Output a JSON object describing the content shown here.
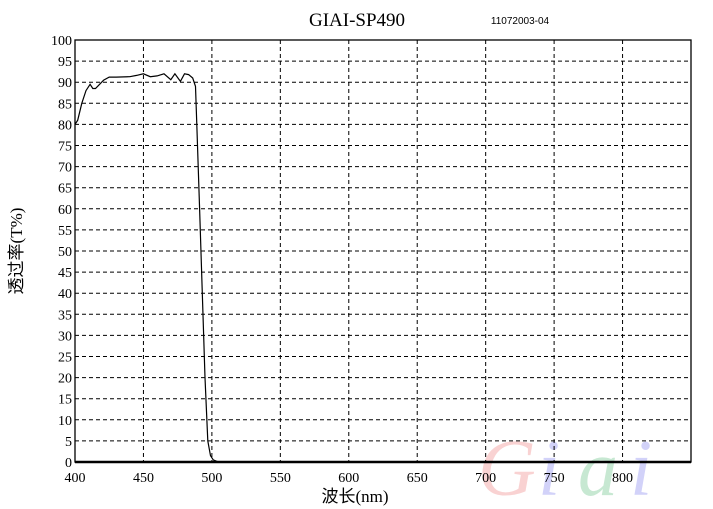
{
  "chart_data": {
    "type": "line",
    "title": "GIAI-SP490",
    "subtitle": "11072003-04",
    "xlabel": "波长(nm)",
    "ylabel": "透过率(T%)",
    "xlim": [
      400,
      850
    ],
    "ylim": [
      0,
      100
    ],
    "xticks": [
      400,
      450,
      500,
      550,
      600,
      650,
      700,
      750,
      800
    ],
    "yticks": [
      0,
      5,
      10,
      15,
      20,
      25,
      30,
      35,
      40,
      45,
      50,
      55,
      60,
      65,
      70,
      75,
      80,
      85,
      90,
      95,
      100
    ],
    "grid": true,
    "series": [
      {
        "x": [
          400,
          402,
          405,
          408,
          411,
          413,
          415,
          418,
          421,
          425,
          430,
          440,
          445,
          450,
          455,
          460,
          465,
          470,
          473,
          477,
          480,
          483,
          486,
          488,
          489,
          491,
          493,
          495,
          497,
          499,
          501,
          505,
          850
        ],
        "y": [
          80,
          81,
          85,
          88,
          89.5,
          88.5,
          88.5,
          89.5,
          90.5,
          91.2,
          91.2,
          91.3,
          91.6,
          92,
          91.3,
          91.5,
          92,
          90.6,
          92,
          90.2,
          92,
          91.8,
          91,
          89,
          80,
          60,
          40,
          20,
          5,
          1.5,
          0.5,
          0,
          0
        ]
      }
    ],
    "colors": {
      "line": "#000000",
      "grid": "#000000"
    },
    "watermark": "Giai"
  }
}
